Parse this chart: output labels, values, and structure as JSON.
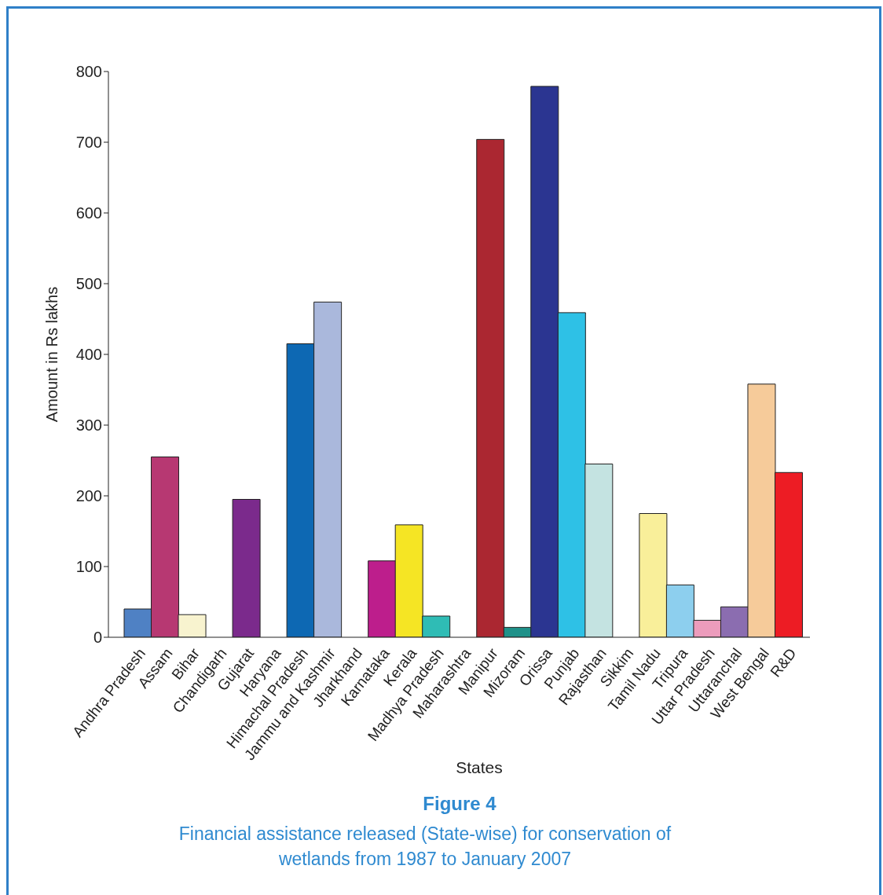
{
  "chart_data": {
    "type": "bar",
    "title": "Figure 4",
    "subtitle": "Financial assistance released (State-wise) for conservation of wetlands from 1987 to January 2007",
    "xlabel": "States",
    "ylabel": "Amount in Rs lakhs",
    "categories": [
      "Andhra Pradesh",
      "Assam",
      "Bihar",
      "Chandigarh",
      "Gujarat",
      "Haryana",
      "Himachal Pradesh",
      "Jammu and Kashmir",
      "Jharkhand",
      "Karnataka",
      "Kerala",
      "Madhya Pradesh",
      "Maharashtra",
      "Manipur",
      "Mizoram",
      "Orissa",
      "Punjab",
      "Rajasthan",
      "Sikkim",
      "Tamil Nadu",
      "Tripura",
      "Uttar Pradesh",
      "Uttaranchal",
      "West Bengal",
      "R&D"
    ],
    "values": [
      40,
      255,
      32,
      0,
      195,
      0,
      415,
      474,
      0,
      108,
      159,
      30,
      0,
      704,
      14,
      779,
      459,
      245,
      0,
      175,
      74,
      24,
      43,
      358,
      233
    ],
    "colors": [
      "#4f81c4",
      "#b73872",
      "#f8f3cf",
      "#ffffff",
      "#7b2a8c",
      "#ffffff",
      "#0d68b3",
      "#aab8dc",
      "#ffffff",
      "#bd1e8c",
      "#f5e524",
      "#2fbcb5",
      "#ffffff",
      "#ab2731",
      "#1f9189",
      "#2b3591",
      "#2ec1e6",
      "#c4e3e1",
      "#ffffff",
      "#f9ef9a",
      "#8dcfee",
      "#ec9cbc",
      "#8b6db0",
      "#f6cb9a",
      "#ed1c24"
    ],
    "ylim": [
      0,
      800
    ],
    "yticks": [
      0,
      100,
      200,
      300,
      400,
      500,
      600,
      700,
      800
    ]
  }
}
